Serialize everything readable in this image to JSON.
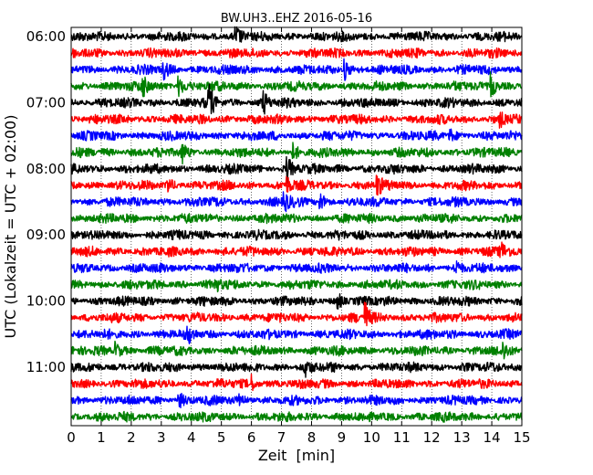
{
  "chart_data": {
    "type": "line",
    "title": "BW.UH3..EHZ 2016-05-16",
    "xlabel": "Zeit  [min]",
    "ylabel": "UTC (Lokalzeit = UTC + 02:00)",
    "xlim": [
      0,
      15
    ],
    "x_ticks": [
      "0",
      "1",
      "2",
      "3",
      "4",
      "5",
      "6",
      "7",
      "8",
      "9",
      "10",
      "11",
      "12",
      "13",
      "14",
      "15"
    ],
    "y_ticks": [
      "06:00",
      "07:00",
      "08:00",
      "09:00",
      "10:00",
      "11:00"
    ],
    "y_tick_rows": [
      0,
      4,
      8,
      12,
      16,
      20
    ],
    "row_interval_minutes": 15,
    "grid": "vertical dotted lines at each minute",
    "colors": [
      "#000000",
      "#ff0000",
      "#0000ff",
      "#008000"
    ],
    "series": [
      {
        "start": "06:00",
        "color": "#000000",
        "events": [
          {
            "t": 5.5,
            "amp": 0.9
          }
        ]
      },
      {
        "start": "06:15",
        "color": "#ff0000",
        "events": []
      },
      {
        "start": "06:30",
        "color": "#0000ff",
        "events": [
          {
            "t": 3.1,
            "amp": 0.9
          },
          {
            "t": 9.1,
            "amp": 1.3
          }
        ]
      },
      {
        "start": "06:45",
        "color": "#008000",
        "events": [
          {
            "t": 2.4,
            "amp": 1.1
          },
          {
            "t": 3.6,
            "amp": 1.1
          },
          {
            "t": 14.0,
            "amp": 1.4
          }
        ]
      },
      {
        "start": "07:00",
        "color": "#000000",
        "events": [
          {
            "t": 4.6,
            "amp": 1.8
          },
          {
            "t": 6.4,
            "amp": 1.3
          }
        ]
      },
      {
        "start": "07:15",
        "color": "#ff0000",
        "events": [
          {
            "t": 14.3,
            "amp": 0.7
          }
        ]
      },
      {
        "start": "07:30",
        "color": "#0000ff",
        "events": [
          {
            "t": 12.6,
            "amp": 0.8
          }
        ]
      },
      {
        "start": "07:45",
        "color": "#008000",
        "events": [
          {
            "t": 3.7,
            "amp": 1.0
          },
          {
            "t": 7.4,
            "amp": 0.9
          }
        ]
      },
      {
        "start": "08:00",
        "color": "#000000",
        "events": [
          {
            "t": 7.2,
            "amp": 1.4
          }
        ]
      },
      {
        "start": "08:15",
        "color": "#ff0000",
        "events": [
          {
            "t": 3.2,
            "amp": 0.9
          },
          {
            "t": 7.2,
            "amp": 0.8
          },
          {
            "t": 10.2,
            "amp": 1.0
          }
        ]
      },
      {
        "start": "08:30",
        "color": "#0000ff",
        "events": [
          {
            "t": 7.1,
            "amp": 1.1
          },
          {
            "t": 8.3,
            "amp": 0.9
          }
        ]
      },
      {
        "start": "08:45",
        "color": "#008000",
        "events": []
      },
      {
        "start": "09:00",
        "color": "#000000",
        "events": []
      },
      {
        "start": "09:15",
        "color": "#ff0000",
        "events": [
          {
            "t": 14.3,
            "amp": 1.2
          }
        ]
      },
      {
        "start": "09:30",
        "color": "#0000ff",
        "events": [
          {
            "t": 12.8,
            "amp": 0.8
          }
        ]
      },
      {
        "start": "09:45",
        "color": "#008000",
        "events": [
          {
            "t": 4.8,
            "amp": 0.7
          }
        ]
      },
      {
        "start": "10:00",
        "color": "#000000",
        "events": [
          {
            "t": 8.9,
            "amp": 0.8
          }
        ]
      },
      {
        "start": "10:15",
        "color": "#ff0000",
        "events": [
          {
            "t": 9.8,
            "amp": 1.6
          }
        ]
      },
      {
        "start": "10:30",
        "color": "#0000ff",
        "events": [
          {
            "t": 3.9,
            "amp": 0.8
          }
        ]
      },
      {
        "start": "10:45",
        "color": "#008000",
        "events": [
          {
            "t": 1.5,
            "amp": 0.9
          },
          {
            "t": 14.4,
            "amp": 0.8
          }
        ]
      },
      {
        "start": "11:00",
        "color": "#000000",
        "events": [
          {
            "t": 7.8,
            "amp": 0.7
          }
        ]
      },
      {
        "start": "11:15",
        "color": "#ff0000",
        "events": [
          {
            "t": 6.0,
            "amp": 0.8
          }
        ]
      },
      {
        "start": "11:30",
        "color": "#0000ff",
        "events": [
          {
            "t": 3.6,
            "amp": 0.8
          },
          {
            "t": 5.6,
            "amp": 0.8
          }
        ]
      },
      {
        "start": "11:45",
        "color": "#008000",
        "events": []
      }
    ]
  }
}
